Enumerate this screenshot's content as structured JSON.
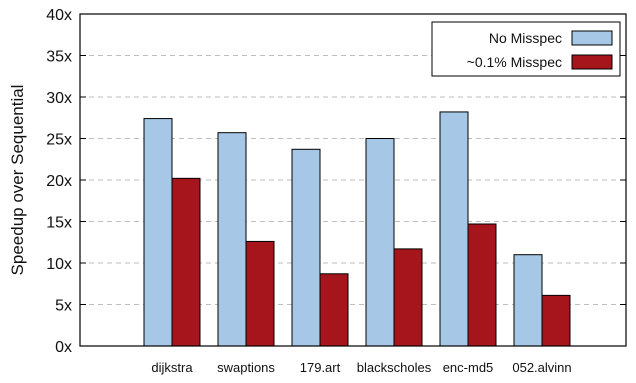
{
  "chart_data": {
    "type": "bar",
    "ylabel": "Speedup over Sequential",
    "xlabel": "",
    "ylim": [
      0,
      40
    ],
    "yticks": [
      0,
      5,
      10,
      15,
      20,
      25,
      30,
      35,
      40
    ],
    "ytick_suffix": "x",
    "grid": "horizontal-dashed",
    "legend_position": "top-right",
    "categories": [
      "dijkstra",
      "swaptions",
      "179.art",
      "blackscholes",
      "enc-md5",
      "052.alvinn"
    ],
    "series": [
      {
        "name": "No Misspec",
        "color": "#a6c8e6",
        "values": [
          27.4,
          25.7,
          23.7,
          25.0,
          28.2,
          11.0
        ]
      },
      {
        "name": "~0.1% Misspec",
        "color": "#a6141c",
        "values": [
          20.2,
          12.6,
          8.7,
          11.7,
          14.7,
          6.1
        ]
      }
    ]
  }
}
